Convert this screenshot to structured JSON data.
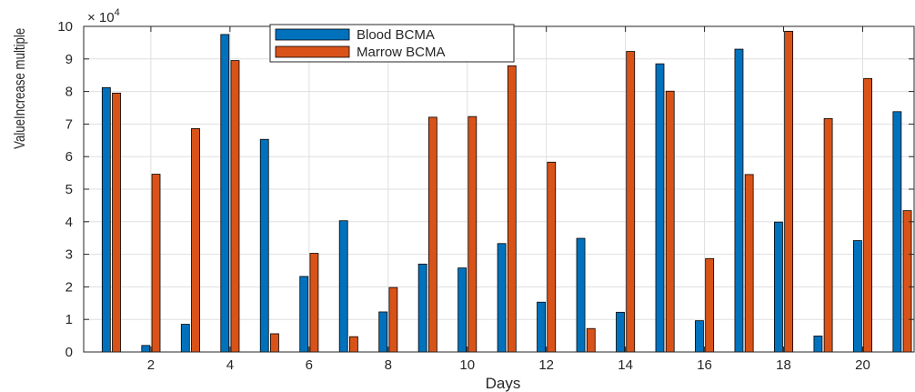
{
  "chart_data": {
    "type": "bar",
    "xlabel": "Days",
    "ylabel": "ValueIncrease multiple",
    "y_exponent_label": "× 10",
    "y_exponent_power": "4",
    "ylim": [
      0,
      100000
    ],
    "xlim": [
      0.3,
      21.3
    ],
    "grid": true,
    "legend_position": "top-center",
    "x_ticks": [
      2,
      4,
      6,
      8,
      10,
      12,
      14,
      16,
      18,
      20
    ],
    "x_tick_labels": [
      "2",
      "4",
      "6",
      "8",
      "10",
      "12",
      "14",
      "16",
      "18",
      "20"
    ],
    "y_ticks": [
      0,
      10000,
      20000,
      30000,
      40000,
      50000,
      60000,
      70000,
      80000,
      90000,
      100000
    ],
    "y_tick_labels": [
      "0",
      "1",
      "2",
      "3",
      "4",
      "5",
      "6",
      "7",
      "8",
      "9",
      "10"
    ],
    "categories": [
      1,
      2,
      3,
      4,
      5,
      6,
      7,
      8,
      9,
      10,
      11,
      12,
      13,
      14,
      15,
      16,
      17,
      18,
      19,
      20,
      21
    ],
    "series": [
      {
        "name": "Blood BCMA",
        "color": "#0072BD",
        "values": [
          81200,
          2000,
          8500,
          97500,
          65300,
          23200,
          40300,
          12300,
          27000,
          25800,
          33300,
          15300,
          34900,
          12200,
          88500,
          9600,
          93000,
          39900,
          4900,
          34200,
          73800
        ]
      },
      {
        "name": "Marrow BCMA",
        "color": "#D95319",
        "values": [
          79500,
          54600,
          68600,
          89500,
          5600,
          30300,
          4700,
          19800,
          72100,
          72300,
          87900,
          58300,
          7200,
          92300,
          80100,
          28700,
          54500,
          98500,
          71700,
          84000,
          43400
        ]
      }
    ]
  }
}
